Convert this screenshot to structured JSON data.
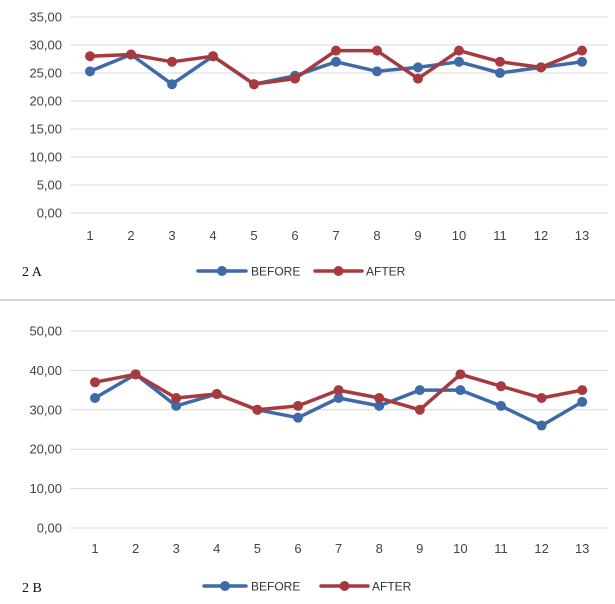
{
  "chart_data": [
    {
      "type": "line",
      "panel_label": "2 A",
      "categories": [
        "1",
        "2",
        "3",
        "4",
        "5",
        "6",
        "7",
        "8",
        "9",
        "10",
        "11",
        "12",
        "13"
      ],
      "y_ticks": [
        "0,00",
        "5,00",
        "10,00",
        "15,00",
        "20,00",
        "25,00",
        "30,00",
        "35,00"
      ],
      "ylim": [
        0,
        35
      ],
      "grid": true,
      "legend_position": "bottom",
      "series": [
        {
          "name": "BEFORE",
          "color": "#3f6aa8",
          "values": [
            25.3,
            28.3,
            23.0,
            28.0,
            23.0,
            24.5,
            27.0,
            25.3,
            26.0,
            27.0,
            25.0,
            26.0,
            27.0
          ]
        },
        {
          "name": "AFTER",
          "color": "#a63a3e",
          "values": [
            28.0,
            28.3,
            27.0,
            28.0,
            23.0,
            24.0,
            29.0,
            29.0,
            24.0,
            29.0,
            27.0,
            26.0,
            29.0
          ]
        }
      ]
    },
    {
      "type": "line",
      "panel_label": "2 B",
      "categories": [
        "1",
        "2",
        "3",
        "4",
        "5",
        "6",
        "7",
        "8",
        "9",
        "10",
        "11",
        "12",
        "13"
      ],
      "y_ticks": [
        "0,00",
        "10,00",
        "20,00",
        "30,00",
        "40,00",
        "50,00"
      ],
      "ylim": [
        0,
        50
      ],
      "grid": true,
      "legend_position": "bottom",
      "series": [
        {
          "name": "BEFORE",
          "color": "#3f6aa8",
          "values": [
            33.0,
            39.0,
            31.0,
            34.0,
            30.0,
            28.0,
            33.0,
            31.0,
            35.0,
            35.0,
            31.0,
            26.0,
            32.0
          ]
        },
        {
          "name": "AFTER",
          "color": "#a63a3e",
          "values": [
            37.0,
            39.0,
            33.0,
            34.0,
            30.0,
            31.0,
            35.0,
            33.0,
            30.0,
            39.0,
            36.0,
            33.0,
            35.0
          ]
        }
      ]
    }
  ]
}
